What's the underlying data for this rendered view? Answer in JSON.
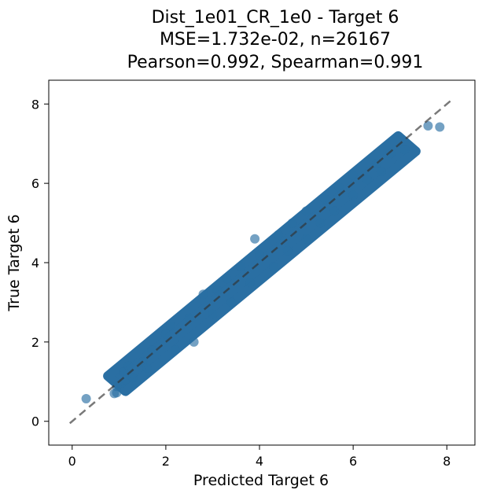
{
  "chart_data": {
    "type": "scatter",
    "title_lines": [
      "Dist_1e01_CR_1e0 - Target 6",
      "MSE=1.732e-02, n=26167",
      "Pearson=0.992, Spearman=0.991"
    ],
    "xlabel": "Predicted Target 6",
    "ylabel": "True Target 6",
    "xlim": [
      -0.5,
      8.6
    ],
    "ylim": [
      -0.6,
      8.6
    ],
    "xticks": [
      0,
      2,
      4,
      6,
      8
    ],
    "yticks": [
      0,
      2,
      4,
      6,
      8
    ],
    "grid": false,
    "point_color": "#2a6fa3",
    "point_alpha": 0.65,
    "reference_line": {
      "x": [
        -0.05,
        8.1
      ],
      "y": [
        -0.05,
        8.1
      ],
      "color": "#333333",
      "style": "dashed"
    },
    "series": [
      {
        "points": [
          [
            0.3,
            0.57
          ],
          [
            0.9,
            0.7
          ],
          [
            0.95,
            0.72
          ],
          [
            0.95,
            0.88
          ],
          [
            1.05,
            0.95
          ],
          [
            1.1,
            1.25
          ],
          [
            1.15,
            1.05
          ],
          [
            1.3,
            1.1
          ],
          [
            1.2,
            1.4
          ],
          [
            1.5,
            1.5
          ],
          [
            1.6,
            1.35
          ],
          [
            1.7,
            1.8
          ],
          [
            2.2,
            1.8
          ],
          [
            2.1,
            2.4
          ],
          [
            2.0,
            2.2
          ],
          [
            2.6,
            2.0
          ],
          [
            2.5,
            2.6
          ],
          [
            2.8,
            3.2
          ],
          [
            3.0,
            2.7
          ],
          [
            3.1,
            3.3
          ],
          [
            3.4,
            3.0
          ],
          [
            3.3,
            3.6
          ],
          [
            3.6,
            3.9
          ],
          [
            3.8,
            3.5
          ],
          [
            4.0,
            4.2
          ],
          [
            3.9,
            4.6
          ],
          [
            4.3,
            3.9
          ],
          [
            4.4,
            4.7
          ],
          [
            4.6,
            4.3
          ],
          [
            4.7,
            5.0
          ],
          [
            5.0,
            4.6
          ],
          [
            5.0,
            5.3
          ],
          [
            5.3,
            5.0
          ],
          [
            5.4,
            5.6
          ],
          [
            5.6,
            5.3
          ],
          [
            5.7,
            5.9
          ],
          [
            6.0,
            5.7
          ],
          [
            6.0,
            6.2
          ],
          [
            6.3,
            6.1
          ],
          [
            6.5,
            6.5
          ],
          [
            6.6,
            6.3
          ],
          [
            6.8,
            6.75
          ],
          [
            7.1,
            6.85
          ],
          [
            7.6,
            7.45
          ],
          [
            7.85,
            7.42
          ]
        ],
        "band_center": [
          [
            0.95,
            0.95
          ],
          [
            7.15,
            7.0
          ]
        ],
        "band_half_width": 0.27
      }
    ]
  }
}
